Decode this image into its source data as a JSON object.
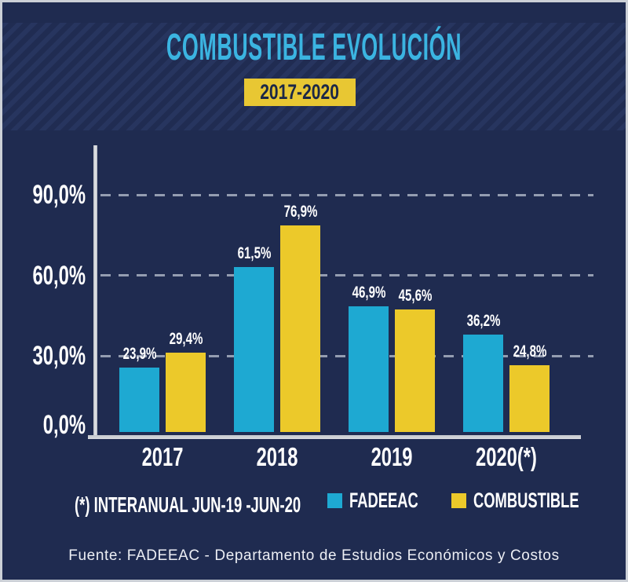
{
  "header": {
    "title": "COMBUSTIBLE EVOLUCIÓN",
    "period_badge": "2017-2020"
  },
  "chart_data": {
    "type": "bar",
    "title": "COMBUSTIBLE EVOLUCIÓN",
    "subtitle": "2017-2020",
    "categories": [
      "2017",
      "2018",
      "2019",
      "2020(*)"
    ],
    "series": [
      {
        "name": "FADEEAC",
        "color": "#1ea9d2",
        "values": [
          23.9,
          61.5,
          46.9,
          36.2
        ],
        "labels": [
          "23,9%",
          "61,5%",
          "46,9%",
          "36,2%"
        ]
      },
      {
        "name": "COMBUSTIBLE",
        "color": "#ecc92a",
        "values": [
          29.4,
          76.9,
          45.6,
          24.8
        ],
        "labels": [
          "29,4%",
          "76,9%",
          "45,6%",
          "24,8%"
        ]
      }
    ],
    "y_axis": {
      "unit": "%",
      "ticks": [
        90,
        60,
        30,
        0
      ],
      "tick_labels": [
        "90,0%",
        "60,0%",
        "30,0%",
        "0,0%"
      ],
      "range": [
        0,
        90
      ],
      "grid": "dashed"
    },
    "legend_position": "bottom"
  },
  "footnote": "(*) INTERANUAL JUN-19 -JUN-20",
  "footer": "Fuente: FADEEAC - Departamento de Estudios Económicos y Costos",
  "colors": {
    "background": "#1f2b50",
    "title": "#3bb4e1",
    "badge_bg": "#e8c733",
    "badge_text": "#1b2747",
    "fadeeac_blue": "#1ea9d2",
    "combustible_yellow": "#ecc92a",
    "axis": "#c9cdd3",
    "gridline": "#949db1"
  }
}
